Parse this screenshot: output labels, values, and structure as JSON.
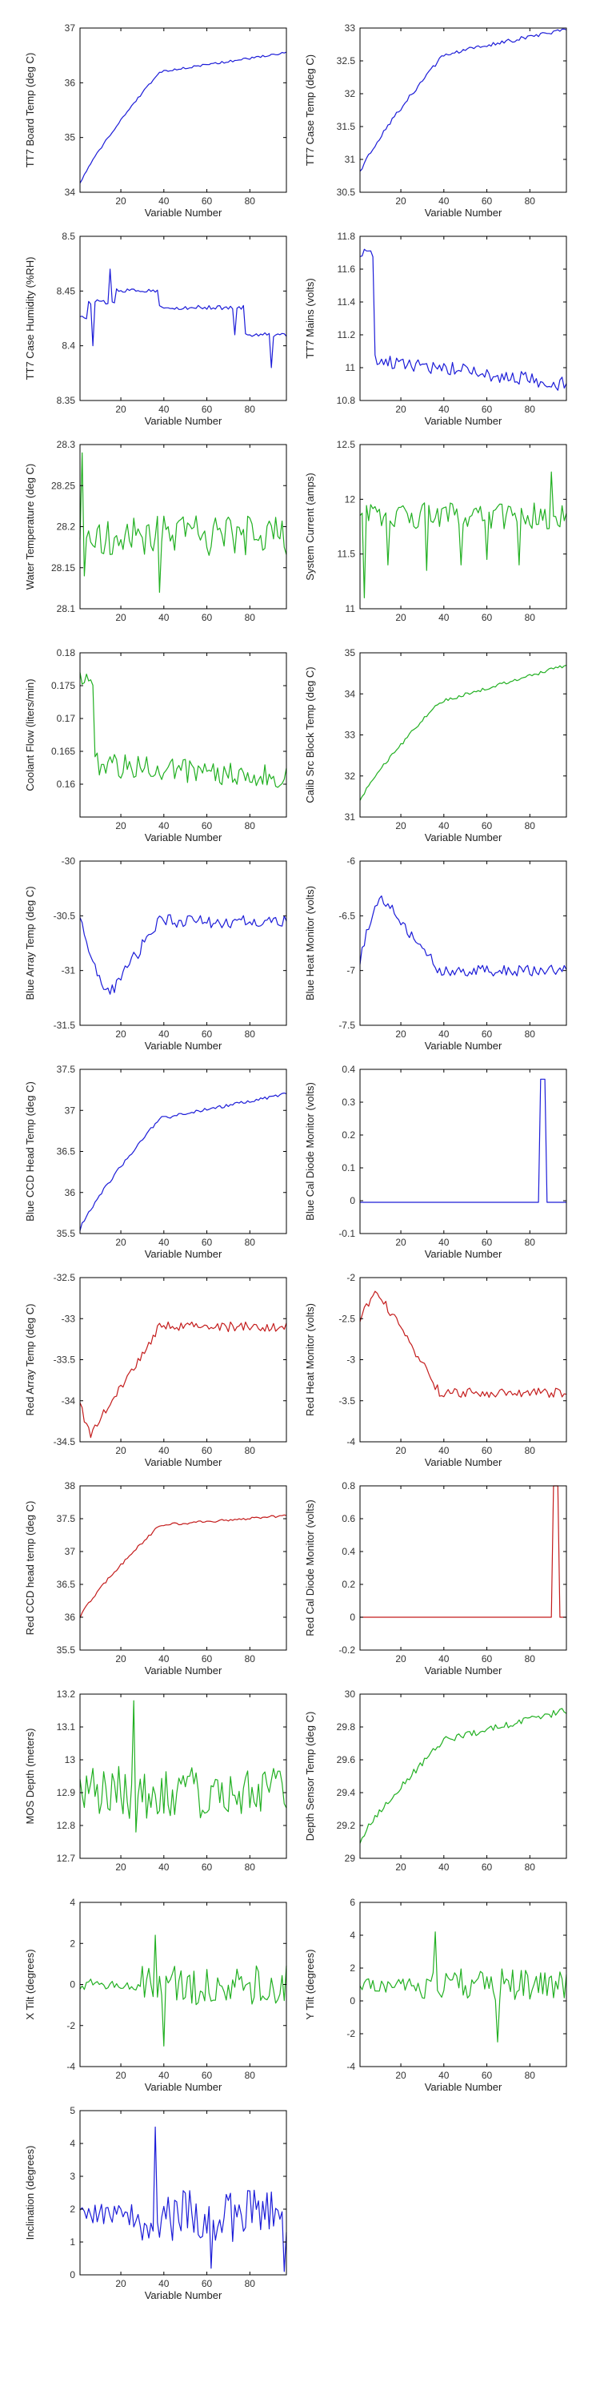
{
  "colors": {
    "blue": "#1c1cd8",
    "green": "#22b022",
    "red": "#c41c1c"
  },
  "chart_data": [
    {
      "id": "tt7-board-temp",
      "type": "line",
      "color": "blue",
      "xlabel": "Variable Number",
      "ylabel": "TT7 Board Temp (deg C)",
      "xlim": [
        1,
        97
      ],
      "ylim": [
        34,
        37
      ],
      "xticks": [
        20,
        40,
        60,
        80
      ],
      "yticks": [
        34,
        35,
        36,
        37
      ],
      "xtick_labels": [
        "20",
        "40",
        "60",
        "80"
      ],
      "ytick_labels": [
        "34",
        "35",
        "36",
        "37"
      ],
      "profile": "warmup",
      "params": {
        "start": 34.15,
        "end": 36.55,
        "knee": 38,
        "kneeVal": 36.2,
        "noise": 0.02
      }
    },
    {
      "id": "tt7-case-temp",
      "type": "line",
      "color": "blue",
      "xlabel": "Variable Number",
      "ylabel": "TT7 Case Temp (deg C)",
      "xlim": [
        1,
        97
      ],
      "ylim": [
        30.5,
        33
      ],
      "xticks": [
        20,
        40,
        60,
        80
      ],
      "yticks": [
        30.5,
        31,
        31.5,
        32,
        32.5,
        33
      ],
      "xtick_labels": [
        "20",
        "40",
        "60",
        "80"
      ],
      "ytick_labels": [
        "30.5",
        "31",
        "31.5",
        "32",
        "32.5",
        "33"
      ],
      "profile": "warmup",
      "params": {
        "start": 30.8,
        "end": 32.98,
        "knee": 40,
        "kneeVal": 32.6,
        "noise": 0.03
      }
    },
    {
      "id": "tt7-case-humidity",
      "type": "line",
      "color": "blue",
      "xlabel": "Variable Number",
      "ylabel": "TT7 Case Humidity (%RH)",
      "xlim": [
        1,
        97
      ],
      "ylim": [
        8.35,
        8.5
      ],
      "xticks": [
        20,
        40,
        60,
        80
      ],
      "yticks": [
        8.35,
        8.4,
        8.45,
        8.5
      ],
      "xtick_labels": [
        "20",
        "40",
        "60",
        "80"
      ],
      "ytick_labels": [
        "8.35",
        "8.4",
        "8.45",
        "8.5"
      ],
      "profile": "steps",
      "params": {
        "levels": [
          [
            1,
            8.425
          ],
          [
            5,
            8.44
          ],
          [
            18,
            8.45
          ],
          [
            38,
            8.435
          ],
          [
            78,
            8.41
          ]
        ],
        "spikes": [
          [
            7,
            8.4
          ],
          [
            15,
            8.47
          ],
          [
            73,
            8.41
          ],
          [
            90,
            8.38
          ]
        ],
        "noise": 0.002
      }
    },
    {
      "id": "tt7-mains",
      "type": "line",
      "color": "blue",
      "xlabel": "Variable Number",
      "ylabel": "TT7 Mains  (volts)",
      "xlim": [
        1,
        97
      ],
      "ylim": [
        10.8,
        11.8
      ],
      "xticks": [
        20,
        40,
        60,
        80
      ],
      "yticks": [
        10.8,
        11,
        11.2,
        11.4,
        11.6,
        11.8
      ],
      "xtick_labels": [
        "20",
        "40",
        "60",
        "80"
      ],
      "ytick_labels": [
        "10.8",
        "11",
        "11.2",
        "11.4",
        "11.6",
        "11.8"
      ],
      "profile": "decay",
      "params": {
        "start": 11.7,
        "drop": 8,
        "after": 11.05,
        "end": 10.9,
        "noise": 0.03
      }
    },
    {
      "id": "water-temp",
      "type": "line",
      "color": "green",
      "xlabel": "",
      "ylabel": "Water Temperature (deg C)",
      "xlim": [
        1,
        97
      ],
      "ylim": [
        28.1,
        28.3
      ],
      "xticks": [
        20,
        40,
        60,
        80
      ],
      "yticks": [
        28.1,
        28.15,
        28.2,
        28.25,
        28.3
      ],
      "xtick_labels": [
        "20",
        "40",
        "60",
        "80"
      ],
      "ytick_labels": [
        "28.1",
        "28.15",
        "28.2",
        "28.25",
        "28.3"
      ],
      "profile": "noisy",
      "params": {
        "mean": 28.19,
        "amp": 0.025,
        "spikes": [
          [
            2,
            28.29
          ],
          [
            3,
            28.14
          ],
          [
            38,
            28.12
          ]
        ]
      }
    },
    {
      "id": "system-current",
      "type": "line",
      "color": "green",
      "xlabel": "",
      "ylabel": "System Current (amps)",
      "xlim": [
        1,
        97
      ],
      "ylim": [
        11,
        12.5
      ],
      "xticks": [
        20,
        40,
        60,
        80
      ],
      "yticks": [
        11,
        11.5,
        12,
        12.5
      ],
      "xtick_labels": [
        "20",
        "40",
        "60",
        "80"
      ],
      "ytick_labels": [
        "11",
        "11.5",
        "12",
        "12.5"
      ],
      "profile": "noisy",
      "params": {
        "mean": 11.85,
        "amp": 0.12,
        "spikes": [
          [
            3,
            11.1
          ],
          [
            14,
            11.4
          ],
          [
            32,
            11.35
          ],
          [
            48,
            11.4
          ],
          [
            60,
            11.45
          ],
          [
            75,
            11.4
          ],
          [
            90,
            12.25
          ]
        ]
      }
    },
    {
      "id": "coolant-flow",
      "type": "line",
      "color": "green",
      "xlabel": "Variable Number",
      "ylabel": "Coolant Flow (liters/min)",
      "xlim": [
        1,
        97
      ],
      "ylim": [
        0.155,
        0.18
      ],
      "xticks": [
        20,
        40,
        60,
        80
      ],
      "yticks": [
        0.155,
        0.16,
        0.165,
        0.17,
        0.175,
        0.18
      ],
      "xtick_labels": [
        "20",
        "40",
        "60",
        "80"
      ],
      "ytick_labels": [
        "",
        "0.16",
        "0.165",
        "0.17",
        "0.175",
        "0.18"
      ],
      "profile": "decay",
      "params": {
        "start": 0.176,
        "drop": 8,
        "after": 0.163,
        "end": 0.161,
        "noise": 0.0012
      }
    },
    {
      "id": "calib-src-block-temp",
      "type": "line",
      "color": "green",
      "xlabel": "Variable Number",
      "ylabel": "Calib Src Block Temp (deg C)",
      "xlim": [
        1,
        97
      ],
      "ylim": [
        31,
        35
      ],
      "xticks": [
        20,
        40,
        60,
        80
      ],
      "yticks": [
        31,
        32,
        33,
        34,
        35
      ],
      "xtick_labels": [
        "20",
        "40",
        "60",
        "80"
      ],
      "ytick_labels": [
        "31",
        "32",
        "33",
        "34",
        "35"
      ],
      "profile": "warmup",
      "params": {
        "start": 31.4,
        "end": 34.7,
        "knee": 38,
        "kneeVal": 33.8,
        "noise": 0.04
      }
    },
    {
      "id": "blue-array-temp",
      "type": "line",
      "color": "blue",
      "xlabel": "Variable Number",
      "ylabel": "Blue Array Temp (deg C)",
      "xlim": [
        1,
        97
      ],
      "ylim": [
        -31.5,
        -30
      ],
      "xticks": [
        20,
        40,
        60,
        80
      ],
      "yticks": [
        -31.5,
        -31,
        -30.5,
        -30
      ],
      "xtick_labels": [
        "20",
        "40",
        "60",
        "80"
      ],
      "ytick_labels": [
        "-31.5",
        "-31",
        "-30.5",
        "-30"
      ],
      "profile": "dip",
      "params": {
        "start": -30.5,
        "low": -31.2,
        "lowAt": 15,
        "recoverAt": 38,
        "after": -30.55,
        "noise": 0.06
      }
    },
    {
      "id": "blue-heat-monitor",
      "type": "line",
      "color": "blue",
      "xlabel": "Variable Number",
      "ylabel": "Blue Heat Monitor (volts)",
      "xlim": [
        1,
        97
      ],
      "ylim": [
        -7.5,
        -6
      ],
      "xticks": [
        20,
        40,
        60,
        80
      ],
      "yticks": [
        -7.5,
        -7,
        -6.5,
        -6
      ],
      "xtick_labels": [
        "20",
        "40",
        "60",
        "80"
      ],
      "ytick_labels": [
        "-7.5",
        "-7",
        "-6.5",
        "-6"
      ],
      "profile": "dip",
      "params": {
        "start": -6.9,
        "low": -6.35,
        "lowAt": 12,
        "recoverAt": 38,
        "after": -7.0,
        "noise": 0.05
      }
    },
    {
      "id": "blue-ccd-head-temp",
      "type": "line",
      "color": "blue",
      "xlabel": "Variable Number",
      "ylabel": "Blue CCD Head Temp (deg C)",
      "xlim": [
        1,
        97
      ],
      "ylim": [
        35.5,
        37.5
      ],
      "xticks": [
        20,
        40,
        60,
        80
      ],
      "yticks": [
        35.5,
        36,
        36.5,
        37,
        37.5
      ],
      "xtick_labels": [
        "20",
        "40",
        "60",
        "80"
      ],
      "ytick_labels": [
        "35.5",
        "36",
        "36.5",
        "37",
        "37.5"
      ],
      "profile": "warmup",
      "params": {
        "start": 35.55,
        "end": 37.2,
        "knee": 38,
        "kneeVal": 36.9,
        "noise": 0.02
      }
    },
    {
      "id": "blue-cal-diode-monitor",
      "type": "line",
      "color": "blue",
      "xlabel": "Variable Number",
      "ylabel": "Blue Cal Diode Monitor (volts)",
      "xlim": [
        1,
        97
      ],
      "ylim": [
        -0.1,
        0.4
      ],
      "xticks": [
        20,
        40,
        60,
        80
      ],
      "yticks": [
        -0.1,
        0,
        0.1,
        0.2,
        0.3,
        0.4
      ],
      "xtick_labels": [
        "20",
        "40",
        "60",
        "80"
      ],
      "ytick_labels": [
        "-0.1",
        "0",
        "0.1",
        "0.2",
        "0.3",
        "0.4"
      ],
      "profile": "pulse",
      "params": {
        "base": -0.005,
        "peak": 0.37,
        "from": 85,
        "to": 87
      }
    },
    {
      "id": "red-array-temp",
      "type": "line",
      "color": "red",
      "xlabel": "Variable Number",
      "ylabel": "Red Array Temp (deg C)",
      "xlim": [
        1,
        97
      ],
      "ylim": [
        -34.5,
        -32.5
      ],
      "xticks": [
        20,
        40,
        60,
        80
      ],
      "yticks": [
        -34.5,
        -34,
        -33.5,
        -33,
        -32.5
      ],
      "xtick_labels": [
        "20",
        "40",
        "60",
        "80"
      ],
      "ytick_labels": [
        "-34.5",
        "-34",
        "-33.5",
        "-33",
        "-32.5"
      ],
      "profile": "dip",
      "params": {
        "start": -34.0,
        "low": -34.4,
        "lowAt": 6,
        "recoverAt": 38,
        "after": -33.1,
        "noise": 0.06
      }
    },
    {
      "id": "red-heat-monitor",
      "type": "line",
      "color": "red",
      "xlabel": "Variable Number",
      "ylabel": "Red Heat Monitor (volts)",
      "xlim": [
        1,
        97
      ],
      "ylim": [
        -4,
        -2
      ],
      "xticks": [
        20,
        40,
        60,
        80
      ],
      "yticks": [
        -4,
        -3.5,
        -3,
        -2.5,
        -2
      ],
      "xtick_labels": [
        "20",
        "40",
        "60",
        "80"
      ],
      "ytick_labels": [
        "-4",
        "-3.5",
        "-3",
        "-2.5",
        "-2"
      ],
      "profile": "dip",
      "params": {
        "start": -2.5,
        "low": -2.2,
        "lowAt": 10,
        "recoverAt": 38,
        "after": -3.4,
        "noise": 0.06
      }
    },
    {
      "id": "red-ccd-head-temp",
      "type": "line",
      "color": "red",
      "xlabel": "Variable Number",
      "ylabel": "Red CCD head temp (deg C)",
      "xlim": [
        1,
        97
      ],
      "ylim": [
        35.5,
        38
      ],
      "xticks": [
        20,
        40,
        60,
        80
      ],
      "yticks": [
        35.5,
        36,
        36.5,
        37,
        37.5,
        38
      ],
      "xtick_labels": [
        "20",
        "40",
        "60",
        "80"
      ],
      "ytick_labels": [
        "35.5",
        "36",
        "36.5",
        "37",
        "37.5",
        "38"
      ],
      "profile": "warmup",
      "params": {
        "start": 36.0,
        "end": 37.55,
        "knee": 38,
        "kneeVal": 37.4,
        "noise": 0.02
      }
    },
    {
      "id": "red-cal-diode-monitor",
      "type": "line",
      "color": "red",
      "xlabel": "Variable Number",
      "ylabel": "Red Cal Diode Monitor (volts)",
      "xlim": [
        1,
        97
      ],
      "ylim": [
        -0.2,
        0.8
      ],
      "xticks": [
        20,
        40,
        60,
        80
      ],
      "yticks": [
        -0.2,
        0,
        0.2,
        0.4,
        0.6,
        0.8
      ],
      "xtick_labels": [
        "20",
        "40",
        "60",
        "80"
      ],
      "ytick_labels": [
        "-0.2",
        "0",
        "0.2",
        "0.4",
        "0.6",
        "0.8"
      ],
      "profile": "pulse",
      "params": {
        "base": 0,
        "peak": 0.8,
        "from": 91,
        "to": 93
      }
    },
    {
      "id": "mos-depth",
      "type": "line",
      "color": "green",
      "xlabel": "",
      "ylabel": "MOS Depth  (meters)",
      "xlim": [
        1,
        97
      ],
      "ylim": [
        12.7,
        13.2
      ],
      "xticks": [
        20,
        40,
        60,
        80
      ],
      "yticks": [
        12.7,
        12.8,
        12.9,
        13,
        13.1,
        13.2
      ],
      "xtick_labels": [
        "20",
        "40",
        "60",
        "80"
      ],
      "ytick_labels": [
        "12.7",
        "12.8",
        "12.9",
        "13",
        "13.1",
        "13.2"
      ],
      "profile": "noisy",
      "params": {
        "mean": 12.9,
        "amp": 0.08,
        "spikes": [
          [
            26,
            13.18
          ],
          [
            27,
            12.78
          ]
        ]
      }
    },
    {
      "id": "depth-sensor-temp",
      "type": "line",
      "color": "green",
      "xlabel": "",
      "ylabel": "Depth Sensor Temp (deg C)",
      "xlim": [
        1,
        97
      ],
      "ylim": [
        29,
        30
      ],
      "xticks": [
        20,
        40,
        60,
        80
      ],
      "yticks": [
        29,
        29.2,
        29.4,
        29.6,
        29.8,
        30
      ],
      "xtick_labels": [
        "20",
        "40",
        "60",
        "80"
      ],
      "ytick_labels": [
        "29",
        "29.2",
        "29.4",
        "29.6",
        "29.8",
        "30"
      ],
      "profile": "warmup",
      "params": {
        "start": 29.1,
        "end": 29.9,
        "knee": 40,
        "kneeVal": 29.72,
        "noise": 0.02
      }
    },
    {
      "id": "x-tilt",
      "type": "line",
      "color": "green",
      "xlabel": "Variable Number",
      "ylabel": "X Tilt  (degrees)",
      "xlim": [
        1,
        97
      ],
      "ylim": [
        -4,
        4
      ],
      "xticks": [
        20,
        40,
        60,
        80
      ],
      "yticks": [
        -4,
        -2,
        0,
        2,
        4
      ],
      "xtick_labels": [
        "20",
        "40",
        "60",
        "80"
      ],
      "ytick_labels": [
        "-4",
        "-2",
        "0",
        "2",
        "4"
      ],
      "profile": "noisy",
      "params": {
        "mean": 0,
        "amp": 1.0,
        "quietUntil": 30,
        "quietAmp": 0.3,
        "spikes": [
          [
            36,
            2.4
          ],
          [
            40,
            -3.0
          ]
        ]
      }
    },
    {
      "id": "y-tilt",
      "type": "line",
      "color": "green",
      "xlabel": "Variable Number",
      "ylabel": "Y Tilt  (degrees)",
      "xlim": [
        1,
        97
      ],
      "ylim": [
        -4,
        6
      ],
      "xticks": [
        20,
        40,
        60,
        80
      ],
      "yticks": [
        -4,
        -2,
        0,
        2,
        4,
        6
      ],
      "xtick_labels": [
        "20",
        "40",
        "60",
        "80"
      ],
      "ytick_labels": [
        "-4",
        "-2",
        "0",
        "2",
        "4",
        "6"
      ],
      "profile": "noisy",
      "params": {
        "mean": 1.0,
        "amp": 1.0,
        "quietUntil": 30,
        "quietAmp": 0.5,
        "spikes": [
          [
            36,
            4.2
          ],
          [
            65,
            -2.5
          ]
        ]
      }
    },
    {
      "id": "inclination",
      "type": "line",
      "color": "blue",
      "xlabel": "Variable Number",
      "ylabel": "Inclination  (degrees)",
      "xlim": [
        1,
        97
      ],
      "ylim": [
        0,
        5
      ],
      "xticks": [
        20,
        40,
        60,
        80
      ],
      "yticks": [
        0,
        1,
        2,
        3,
        4,
        5
      ],
      "xtick_labels": [
        "20",
        "40",
        "60",
        "80"
      ],
      "ytick_labels": [
        "0",
        "1",
        "2",
        "3",
        "4",
        "5"
      ],
      "profile": "noisy",
      "params": {
        "mean": 1.8,
        "amp": 0.8,
        "quietUntil": 30,
        "quietAmp": 0.35,
        "spikes": [
          [
            36,
            4.5
          ],
          [
            62,
            0.2
          ],
          [
            96,
            0.1
          ]
        ]
      }
    }
  ]
}
